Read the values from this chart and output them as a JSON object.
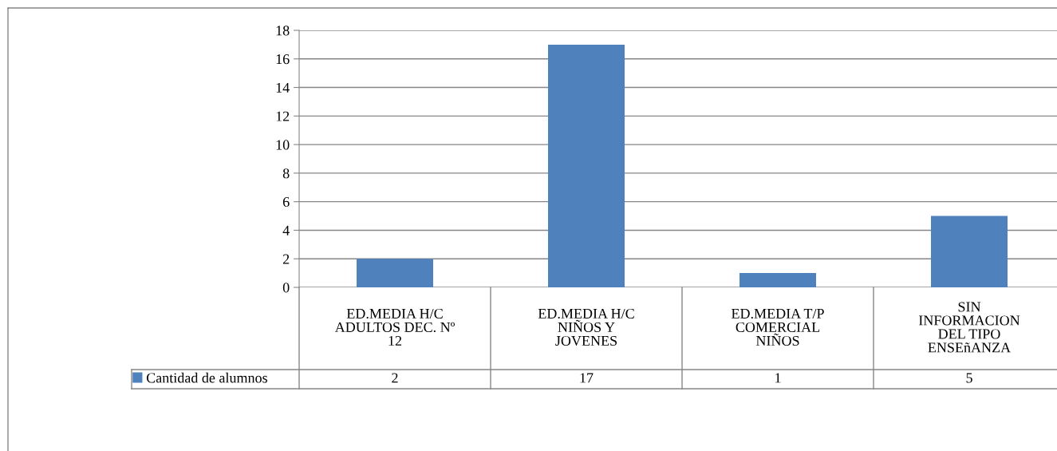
{
  "chart_data": {
    "type": "bar",
    "categories": [
      "ED.MEDIA H/C\nADULTOS DEC. Nº\n12",
      "ED.MEDIA H/C\nNIÑOS Y\nJOVENES",
      "ED.MEDIA T/P\nCOMERCIAL\nNIÑOS",
      "SIN\nINFORMACION\nDEL TIPO\nENSEñANZA"
    ],
    "series": [
      {
        "name": "Cantidad de alumnos",
        "color": "#4f81bd",
        "values": [
          2,
          17,
          1,
          5
        ]
      }
    ],
    "ylim": [
      0,
      18
    ],
    "yticks": [
      0,
      2,
      4,
      6,
      8,
      10,
      12,
      14,
      16,
      18
    ],
    "grid": "y",
    "legend": "bottom left",
    "data_labels": true
  }
}
